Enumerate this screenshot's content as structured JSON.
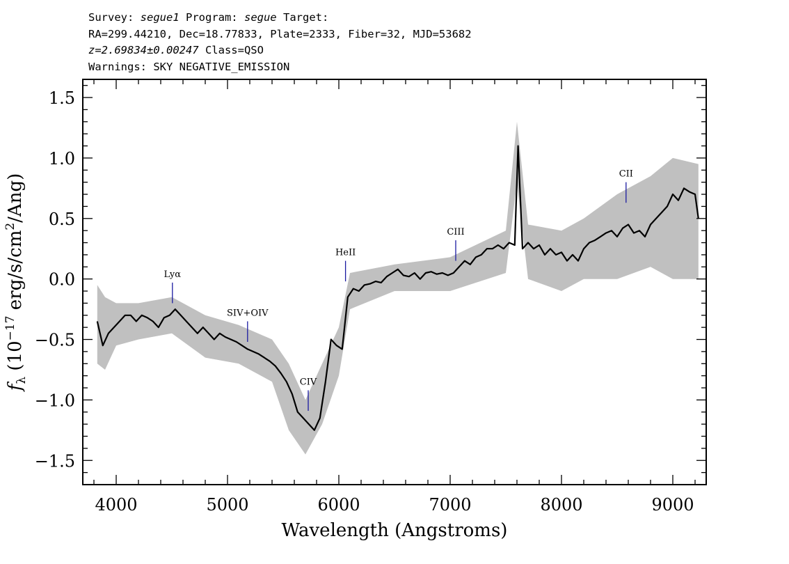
{
  "header": {
    "line1": {
      "survey_label": "Survey: ",
      "survey": "segue1",
      "program_label": " Program: ",
      "program": "segue",
      "target_label": " Target:"
    },
    "line2": "RA=299.44210, Dec=18.77833, Plate=2333, Fiber=32, MJD=53682",
    "line3": {
      "z": "z=2.69834±0.00247",
      "class": " Class=QSO"
    },
    "line4": "Warnings: SKY NEGATIVE_EMISSION"
  },
  "chart_data": {
    "type": "line",
    "xlabel": "Wavelength (Angstroms)",
    "ylabel_parts": {
      "f": "f",
      "sub": "λ",
      "open": " (10",
      "exp": "−17",
      "mid": " erg/s/cm",
      "sq": "2",
      "close": "/Ang)"
    },
    "xlim": [
      3700,
      9300
    ],
    "ylim": [
      -1.7,
      1.65
    ],
    "xticks": [
      4000,
      5000,
      6000,
      7000,
      8000,
      9000
    ],
    "xtick_labels": [
      "4000",
      "5000",
      "6000",
      "7000",
      "8000",
      "9000"
    ],
    "yticks": [
      -1.5,
      -1.0,
      -0.5,
      0.0,
      0.5,
      1.0,
      1.5
    ],
    "ytick_labels": [
      "−1.5",
      "−1.0",
      "−0.5",
      "0.0",
      "0.5",
      "1.0",
      "1.5"
    ],
    "colors": {
      "flux": "#000000",
      "error_band": "#c0c0c0",
      "line_marker": "#1a1aa0"
    },
    "series": [
      {
        "kind": "flux",
        "x": [
          3830,
          3880,
          3930,
          3980,
          4030,
          4080,
          4130,
          4180,
          4230,
          4280,
          4330,
          4380,
          4430,
          4480,
          4530,
          4580,
          4630,
          4680,
          4730,
          4780,
          4830,
          4880,
          4930,
          4980,
          5030,
          5080,
          5130,
          5180,
          5230,
          5280,
          5330,
          5380,
          5430,
          5480,
          5530,
          5580,
          5630,
          5680,
          5730,
          5780,
          5830,
          5880,
          5930,
          5980,
          6030,
          6080,
          6130,
          6180,
          6230,
          6280,
          6330,
          6380,
          6430,
          6480,
          6530,
          6580,
          6630,
          6680,
          6730,
          6780,
          6830,
          6880,
          6930,
          6980,
          7030,
          7080,
          7130,
          7180,
          7230,
          7280,
          7330,
          7380,
          7430,
          7480,
          7530,
          7580,
          7610,
          7650,
          7700,
          7750,
          7800,
          7850,
          7900,
          7950,
          8000,
          8050,
          8100,
          8150,
          8200,
          8250,
          8300,
          8350,
          8400,
          8450,
          8500,
          8550,
          8600,
          8650,
          8700,
          8750,
          8800,
          8850,
          8900,
          8950,
          9000,
          9050,
          9100,
          9150,
          9200,
          9230
        ],
        "y": [
          -0.35,
          -0.55,
          -0.45,
          -0.4,
          -0.35,
          -0.3,
          -0.3,
          -0.35,
          -0.3,
          -0.32,
          -0.35,
          -0.4,
          -0.32,
          -0.3,
          -0.25,
          -0.3,
          -0.35,
          -0.4,
          -0.45,
          -0.4,
          -0.45,
          -0.5,
          -0.45,
          -0.48,
          -0.5,
          -0.52,
          -0.55,
          -0.58,
          -0.6,
          -0.62,
          -0.65,
          -0.68,
          -0.72,
          -0.78,
          -0.85,
          -0.95,
          -1.1,
          -1.15,
          -1.2,
          -1.25,
          -1.15,
          -0.85,
          -0.5,
          -0.55,
          -0.58,
          -0.15,
          -0.08,
          -0.1,
          -0.05,
          -0.04,
          -0.02,
          -0.03,
          0.02,
          0.05,
          0.08,
          0.03,
          0.02,
          0.05,
          0.0,
          0.05,
          0.06,
          0.04,
          0.05,
          0.03,
          0.05,
          0.1,
          0.15,
          0.12,
          0.18,
          0.2,
          0.25,
          0.25,
          0.28,
          0.25,
          0.3,
          0.28,
          1.1,
          0.25,
          0.3,
          0.25,
          0.28,
          0.2,
          0.25,
          0.2,
          0.22,
          0.15,
          0.2,
          0.15,
          0.25,
          0.3,
          0.32,
          0.35,
          0.38,
          0.4,
          0.35,
          0.42,
          0.45,
          0.38,
          0.4,
          0.35,
          0.45,
          0.5,
          0.55,
          0.6,
          0.7,
          0.65,
          0.75,
          0.72,
          0.7,
          0.5
        ]
      },
      {
        "kind": "error_band",
        "x": [
          3830,
          3900,
          4000,
          4200,
          4500,
          4800,
          5100,
          5400,
          5550,
          5700,
          5850,
          6000,
          6100,
          6500,
          7000,
          7500,
          7600,
          7700,
          8000,
          8200,
          8500,
          8800,
          9000,
          9230
        ],
        "upper": [
          -0.05,
          -0.15,
          -0.2,
          -0.2,
          -0.15,
          -0.3,
          -0.38,
          -0.5,
          -0.7,
          -1.0,
          -0.7,
          -0.4,
          0.05,
          0.12,
          0.18,
          0.4,
          1.3,
          0.45,
          0.4,
          0.5,
          0.7,
          0.85,
          1.0,
          0.95
        ],
        "lower": [
          -0.7,
          -0.75,
          -0.55,
          -0.5,
          -0.45,
          -0.65,
          -0.7,
          -0.85,
          -1.25,
          -1.45,
          -1.2,
          -0.8,
          -0.25,
          -0.1,
          -0.1,
          0.05,
          0.8,
          0.0,
          -0.1,
          0.0,
          0.0,
          0.1,
          0.0,
          0.0
        ]
      }
    ],
    "line_markers": [
      {
        "label": "Lyα",
        "x": 4505,
        "y_top": -0.03,
        "y_bottom": -0.2
      },
      {
        "label": "SIV+OIV",
        "x": 5180,
        "y_top": -0.35,
        "y_bottom": -0.52
      },
      {
        "label": "CIV",
        "x": 5725,
        "y_top": -0.92,
        "y_bottom": -1.09
      },
      {
        "label": "HeII",
        "x": 6060,
        "y_top": 0.15,
        "y_bottom": -0.02
      },
      {
        "label": "CIII",
        "x": 7050,
        "y_top": 0.32,
        "y_bottom": 0.15
      },
      {
        "label": "CII",
        "x": 8580,
        "y_top": 0.8,
        "y_bottom": 0.63
      }
    ]
  }
}
